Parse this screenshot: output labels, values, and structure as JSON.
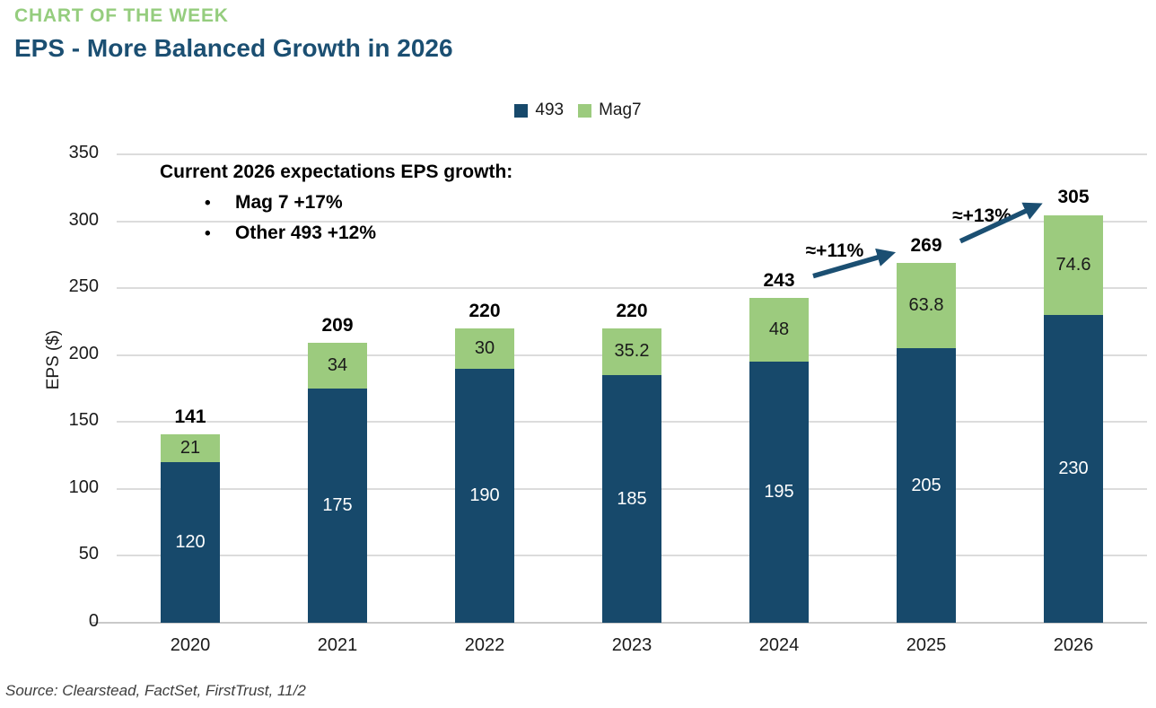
{
  "header": {
    "eyebrow": "CHART OF THE WEEK",
    "title": "EPS - More Balanced Growth in 2026"
  },
  "chart_data": {
    "type": "bar",
    "stacked": true,
    "title": "EPS - More Balanced Growth in 2026",
    "categories": [
      "2020",
      "2021",
      "2022",
      "2023",
      "2024",
      "2025",
      "2026"
    ],
    "series": [
      {
        "name": "493",
        "color": "#17496b",
        "label_color": "#ffffff",
        "values": [
          120,
          175,
          190,
          185,
          195,
          205,
          230
        ]
      },
      {
        "name": "Mag7",
        "color": "#9ccb7e",
        "label_color": "#1a1a1a",
        "values": [
          21,
          34,
          30,
          35.2,
          48,
          63.8,
          74.6
        ]
      }
    ],
    "totals": [
      141,
      209,
      220,
      220,
      243,
      269,
      305
    ],
    "xlabel": "",
    "ylabel": "EPS ($)",
    "ylim": [
      0,
      350
    ],
    "ytick_step": 50,
    "grid": true,
    "legend_position": "top-center",
    "growth_arrows": [
      {
        "label": "≈+11%",
        "from": "2024",
        "to": "2025"
      },
      {
        "label": "≈+13%",
        "from": "2025",
        "to": "2026"
      }
    ]
  },
  "annotation": {
    "title": "Current 2026 expectations EPS growth:",
    "bullets": [
      "Mag 7 +17%",
      "Other 493 +12%"
    ]
  },
  "footer": {
    "source": "Source: Clearstead, FactSet, FirstTrust, 11/2"
  },
  "colors": {
    "eyebrow_green": "#95cd7e",
    "title_blue": "#1b4f72",
    "bar_blue": "#17496b",
    "bar_green": "#9ccb7e",
    "arrow_blue": "#1b4f72",
    "gridline": "#dcdcdc"
  }
}
